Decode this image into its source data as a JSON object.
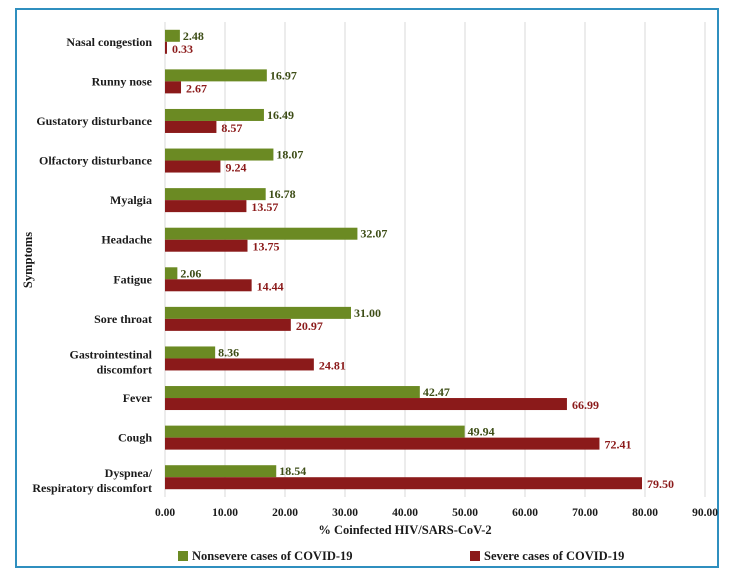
{
  "chart_data": {
    "type": "bar",
    "orientation": "horizontal",
    "categories": [
      "Nasal congestion",
      "Runny nose",
      "Gustatory disturbance",
      "Olfactory disturbance",
      "Myalgia",
      "Headache",
      "Fatigue",
      "Sore throat",
      "Gastrointestinal discomfort",
      "Fever",
      "Cough",
      "Dyspnea/Respiratory discomfort"
    ],
    "series": [
      {
        "name": "Nonsevere cases of COVID-19",
        "color": "#6b8a23",
        "label_color": "#3d4d16",
        "values": [
          2.48,
          16.97,
          16.49,
          18.07,
          16.78,
          32.07,
          2.06,
          31.0,
          8.36,
          42.47,
          49.94,
          18.54
        ]
      },
      {
        "name": "Severe cases of COVID-19",
        "color": "#8b1a1a",
        "label_color": "#8b1a1a",
        "values": [
          0.33,
          2.67,
          8.57,
          9.24,
          13.57,
          13.75,
          14.44,
          20.97,
          24.81,
          66.99,
          72.41,
          79.5
        ]
      }
    ],
    "title": "",
    "xlabel": "% Coinfected HIV/SARS-CoV-2",
    "ylabel": "Symptoms",
    "xlim": [
      0,
      90
    ],
    "xticks": [
      "0.00",
      "10.00",
      "20.00",
      "30.00",
      "40.00",
      "50.00",
      "60.00",
      "70.00",
      "80.00",
      "90.00"
    ],
    "grid": "vertical",
    "legend": "bottom"
  },
  "colors": {
    "frame_border": "#2f8fbf",
    "gridline": "#d9d9d9"
  }
}
